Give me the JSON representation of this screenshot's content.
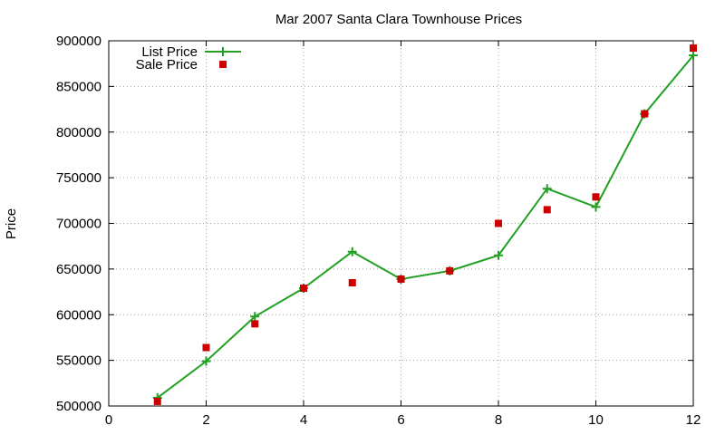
{
  "chart_data": {
    "type": "line",
    "title": "Mar 2007 Santa Clara Townhouse Prices",
    "xlabel": "",
    "ylabel": "Price",
    "xlim": [
      0,
      12
    ],
    "ylim": [
      500000,
      900000
    ],
    "x_ticks": [
      "0",
      "2",
      "4",
      "6",
      "8",
      "10",
      "12"
    ],
    "y_ticks": [
      "500000",
      "550000",
      "600000",
      "650000",
      "700000",
      "750000",
      "800000",
      "850000",
      "900000"
    ],
    "grid": true,
    "legend_position": "top-left",
    "series": [
      {
        "name": "List Price",
        "style": "line-with-plus-markers",
        "color": "#22a022",
        "x": [
          1,
          2,
          3,
          4,
          5,
          6,
          7,
          8,
          9,
          10,
          11,
          12
        ],
        "y": [
          509000,
          549000,
          598000,
          629000,
          669000,
          639000,
          648000,
          665000,
          738000,
          718000,
          820000,
          884000
        ]
      },
      {
        "name": "Sale Price",
        "style": "square-markers",
        "color": "#cc0000",
        "x": [
          1,
          2,
          3,
          4,
          5,
          6,
          7,
          8,
          9,
          10,
          11,
          12
        ],
        "y": [
          505000,
          564000,
          590000,
          629000,
          635000,
          639000,
          648000,
          700000,
          715000,
          729000,
          820000,
          892000
        ]
      }
    ]
  }
}
